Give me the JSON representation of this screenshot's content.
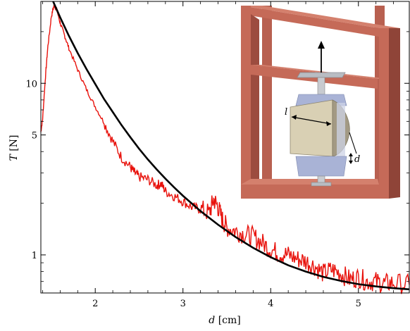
{
  "chart_data": {
    "type": "line",
    "title": "",
    "xlabel": {
      "var": "d",
      "unit": "[cm]"
    },
    "ylabel": {
      "var": "T",
      "unit": "[N]"
    },
    "x_scale": "linear",
    "y_scale": "log",
    "xlim": [
      1.38,
      5.58
    ],
    "ylim": [
      0.6,
      30
    ],
    "x_ticks": [
      2,
      3,
      4,
      5
    ],
    "x_tick_labels": [
      "2",
      "3",
      "4",
      "5"
    ],
    "y_ticks": [
      1,
      5,
      10
    ],
    "y_tick_labels": [
      "1",
      "5",
      "10"
    ],
    "grid": false,
    "legend": "none",
    "colors": {
      "measured": "#e8120c",
      "fit": "#000000",
      "frame": "#c56a58",
      "frame_side": "#9c4c3f",
      "sample": "#d9d0b4",
      "clamp": "#a9b3d6"
    },
    "series": [
      {
        "style": "noisy-line",
        "color": "#e8120c",
        "x": [
          1.38,
          1.4,
          1.43,
          1.46,
          1.5,
          1.53,
          1.56,
          1.6,
          1.65,
          1.7,
          1.8,
          1.9,
          2.0,
          2.1,
          2.2,
          2.3,
          2.4,
          2.45,
          2.5,
          2.6,
          2.7,
          2.75,
          2.8,
          2.9,
          3.0,
          3.1,
          3.2,
          3.3,
          3.35,
          3.4,
          3.45,
          3.5,
          3.6,
          3.7,
          3.8,
          3.9,
          4.0,
          4.1,
          4.2,
          4.3,
          4.4,
          4.5,
          4.6,
          4.7,
          4.8,
          4.9,
          5.0,
          5.1,
          5.2,
          5.3,
          5.4,
          5.58
        ],
        "y": [
          5.2,
          6.2,
          10.5,
          16.5,
          24.5,
          28.5,
          27.0,
          22.5,
          19.0,
          16.0,
          12.0,
          9.2,
          7.3,
          5.9,
          4.6,
          3.7,
          3.25,
          3.0,
          2.85,
          2.75,
          2.55,
          2.6,
          2.35,
          2.2,
          2.05,
          1.9,
          1.85,
          1.75,
          2.1,
          1.9,
          1.6,
          1.45,
          1.38,
          1.32,
          1.28,
          1.18,
          1.08,
          1.02,
          1.0,
          0.95,
          0.92,
          0.86,
          0.78,
          0.82,
          0.78,
          0.72,
          0.74,
          0.7,
          0.7,
          0.68,
          0.69,
          0.67
        ]
      },
      {
        "style": "fit-line",
        "color": "#000000",
        "x": [
          1.52,
          1.6,
          1.7,
          1.8,
          1.9,
          2.0,
          2.1,
          2.2,
          2.3,
          2.4,
          2.5,
          2.6,
          2.7,
          2.8,
          2.9,
          3.0,
          3.2,
          3.4,
          3.6,
          3.8,
          4.0,
          4.2,
          4.4,
          4.6,
          4.8,
          5.0,
          5.2,
          5.4,
          5.58
        ],
        "y": [
          30.0,
          24.2,
          18.9,
          15.0,
          12.1,
          9.9,
          8.1,
          6.8,
          5.7,
          4.85,
          4.15,
          3.6,
          3.15,
          2.78,
          2.47,
          2.21,
          1.8,
          1.5,
          1.27,
          1.1,
          0.97,
          0.87,
          0.8,
          0.745,
          0.705,
          0.675,
          0.655,
          0.64,
          0.63
        ]
      }
    ]
  },
  "inset": {
    "label_l": "l",
    "label_d": "d"
  }
}
